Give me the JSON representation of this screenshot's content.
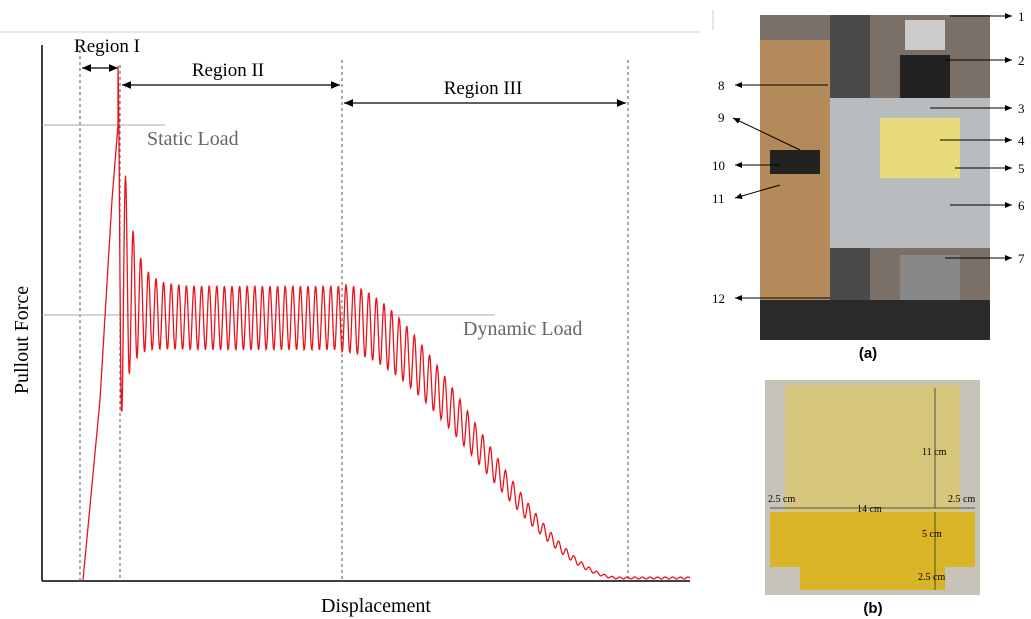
{
  "plot": {
    "y_label": "Pullout Force",
    "x_label": "Displacement",
    "regions": [
      "Region I",
      "Region II",
      "Region III"
    ],
    "annotations": [
      "Static Load",
      "Dynamic Load"
    ]
  },
  "photo_a": {
    "caption": "(a)",
    "callouts": [
      "1",
      "2",
      "3",
      "4",
      "5",
      "6",
      "7",
      "8",
      "9",
      "10",
      "11",
      "12"
    ]
  },
  "photo_b": {
    "caption": "(b)",
    "dimensions": [
      "11 cm",
      "2.5 cm",
      "14 cm",
      "2.5 cm",
      "5 cm",
      "2.5 cm"
    ]
  }
}
